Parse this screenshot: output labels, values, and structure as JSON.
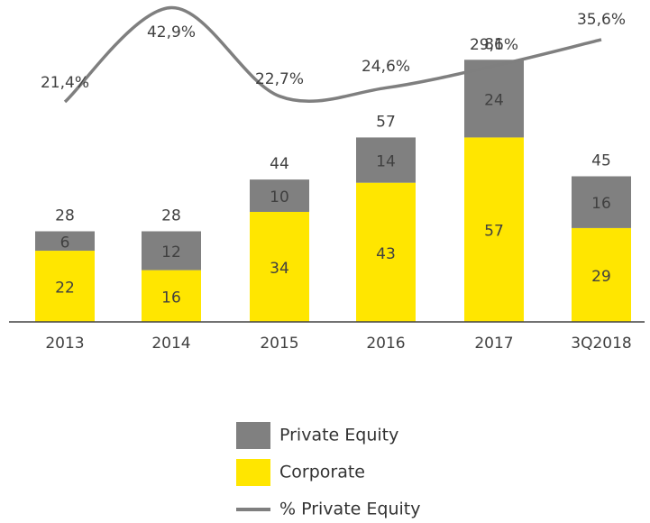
{
  "chart_data": {
    "type": "bar",
    "stacked": true,
    "categories": [
      "2013",
      "2014",
      "2015",
      "2016",
      "2017",
      "3Q2018"
    ],
    "series": [
      {
        "name": "Corporate",
        "color": "#ffe600",
        "values": [
          22,
          16,
          34,
          43,
          57,
          29
        ]
      },
      {
        "name": "Private Equity",
        "color": "#808080",
        "values": [
          6,
          12,
          10,
          14,
          24,
          16
        ]
      },
      {
        "name": "% Private Equity",
        "type": "line",
        "axis": "y2",
        "color": "#7f7f7f",
        "values": [
          21.4,
          42.9,
          22.7,
          24.6,
          29.6,
          35.6
        ],
        "value_labels": [
          "21,4%",
          "42,9%",
          "22,7%",
          "24,6%",
          "29,6%",
          "35,6%"
        ]
      }
    ],
    "totals": [
      28,
      28,
      44,
      57,
      81,
      45
    ],
    "ylim": [
      0,
      90
    ],
    "y2lim": [
      0,
      45
    ]
  }
}
